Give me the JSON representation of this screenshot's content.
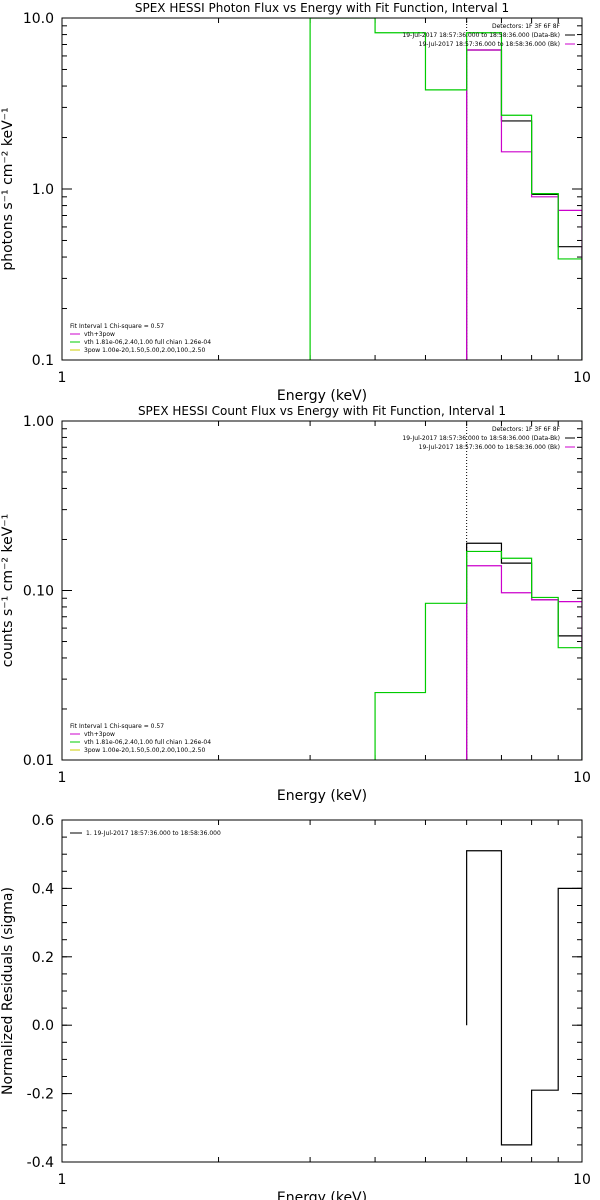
{
  "chart_data": [
    {
      "type": "line",
      "step": true,
      "title": "SPEX HESSI Photon Flux vs Energy with Fit Function, Interval 1",
      "xlabel": "Energy (keV)",
      "ylabel": "photons s⁻¹ cm⁻² keV⁻¹",
      "xscale": "log",
      "yscale": "log",
      "xlim": [
        1,
        10
      ],
      "ylim": [
        0.1,
        10
      ],
      "xticks": [
        {
          "v": 1,
          "label": "1"
        },
        {
          "v": 10,
          "label": "10"
        }
      ],
      "yticks": [
        {
          "v": 0.1,
          "label": "0.1"
        },
        {
          "v": 1,
          "label": "1.0"
        },
        {
          "v": 10,
          "label": "10.0"
        }
      ],
      "top_right_lines": [
        {
          "text": "Detectors: 1F 3F 6F 8F",
          "color": "#000000"
        },
        {
          "text": "19-Jul-2017 18:57:36.000 to 18:58:36.000 (Data-Bk)",
          "color": "#000000"
        },
        {
          "text": "19-Jul-2017 18:57:36.000 to 18:58:36.000 (Bk)",
          "color": "#cc00cc"
        }
      ],
      "fit_legend": [
        {
          "text": "Fit Interval 1   Chi-square = 0.57",
          "color": null
        },
        {
          "text": "vth+3pow",
          "color": "#cc00cc"
        },
        {
          "text": "vth 1.81e-06,2.40,1.00  full chian 1.26e-04",
          "color": "#00cc00"
        },
        {
          "text": "3pow 1.00e-20,1.50,5.00,2.00,100.,2.50",
          "color": "#cccc00"
        }
      ],
      "vline": 6.0,
      "series": [
        {
          "color": "#000000",
          "edges": [
            6.0,
            7.0,
            8.0,
            9.0
          ],
          "values": [
            6.5,
            2.5,
            0.93,
            0.46
          ]
        },
        {
          "color": "#cc00cc",
          "edges": [
            6.0,
            7.0,
            8.0,
            9.0
          ],
          "values": [
            6.5,
            1.65,
            0.9,
            0.75
          ]
        },
        {
          "color": "#00cc00",
          "edges": [
            3.0,
            4.0,
            5.0,
            6.0,
            7.0,
            8.0,
            9.0
          ],
          "values": [
            10.5,
            8.2,
            3.8,
            8.2,
            2.7,
            0.94,
            0.39
          ]
        }
      ]
    },
    {
      "type": "line",
      "step": true,
      "title": "SPEX HESSI Count Flux vs Energy with Fit Function, Interval 1",
      "xlabel": "Energy (keV)",
      "ylabel": "counts s⁻¹ cm⁻² keV⁻¹",
      "xscale": "log",
      "yscale": "log",
      "xlim": [
        1,
        10
      ],
      "ylim": [
        0.01,
        1
      ],
      "xticks": [
        {
          "v": 1,
          "label": "1"
        },
        {
          "v": 10,
          "label": "10"
        }
      ],
      "yticks": [
        {
          "v": 0.01,
          "label": "0.01"
        },
        {
          "v": 0.1,
          "label": "0.10"
        },
        {
          "v": 1,
          "label": "1.00"
        }
      ],
      "top_right_lines": [
        {
          "text": "Detectors: 1F 3F 6F 8F",
          "color": "#000000"
        },
        {
          "text": "19-Jul-2017 18:57:36.000 to 18:58:36.000 (Data-Bk)",
          "color": "#000000"
        },
        {
          "text": "19-Jul-2017 18:57:36.000 to 18:58:36.000 (Bk)",
          "color": "#cc00cc"
        }
      ],
      "fit_legend": [
        {
          "text": "Fit Interval 1   Chi-square = 0.57",
          "color": null
        },
        {
          "text": "vth+3pow",
          "color": "#cc00cc"
        },
        {
          "text": "vth 1.81e-06,2.40,1.00  full chian 1.26e-04",
          "color": "#00cc00"
        },
        {
          "text": "3pow 1.00e-20,1.50,5.00,2.00,100.,2.50",
          "color": "#cccc00"
        }
      ],
      "vline": 6.0,
      "series": [
        {
          "color": "#000000",
          "edges": [
            6.0,
            7.0,
            8.0,
            9.0
          ],
          "values": [
            0.19,
            0.145,
            0.088,
            0.054
          ]
        },
        {
          "color": "#cc00cc",
          "edges": [
            6.0,
            7.0,
            8.0,
            9.0
          ],
          "values": [
            0.14,
            0.097,
            0.088,
            0.086
          ]
        },
        {
          "color": "#00cc00",
          "edges": [
            4.0,
            5.0,
            6.0,
            7.0,
            8.0,
            9.0
          ],
          "values": [
            0.025,
            0.084,
            0.17,
            0.155,
            0.091,
            0.046
          ]
        }
      ]
    },
    {
      "type": "line",
      "step": true,
      "title": "",
      "xlabel": "Energy (keV)",
      "ylabel": "Normalized Residuals (sigma)",
      "xscale": "log",
      "yscale": "linear",
      "xlim": [
        1,
        10
      ],
      "ylim": [
        -0.4,
        0.6
      ],
      "xticks": [
        {
          "v": 1,
          "label": "1"
        },
        {
          "v": 10,
          "label": "10"
        }
      ],
      "yticks": [
        {
          "v": -0.4,
          "label": "-0.4"
        },
        {
          "v": -0.2,
          "label": "-0.2"
        },
        {
          "v": 0.0,
          "label": "0.0"
        },
        {
          "v": 0.2,
          "label": "0.2"
        },
        {
          "v": 0.4,
          "label": "0.4"
        },
        {
          "v": 0.6,
          "label": "0.6"
        }
      ],
      "legend": [
        {
          "text": "1. 19-Jul-2017 18:57:36.000 to 18:58:36.000",
          "color": "#000000"
        }
      ],
      "series": [
        {
          "color": "#000000",
          "edges": [
            6.0,
            7.0,
            8.0,
            9.0
          ],
          "values": [
            0.51,
            -0.35,
            -0.19,
            0.4
          ]
        }
      ]
    }
  ]
}
